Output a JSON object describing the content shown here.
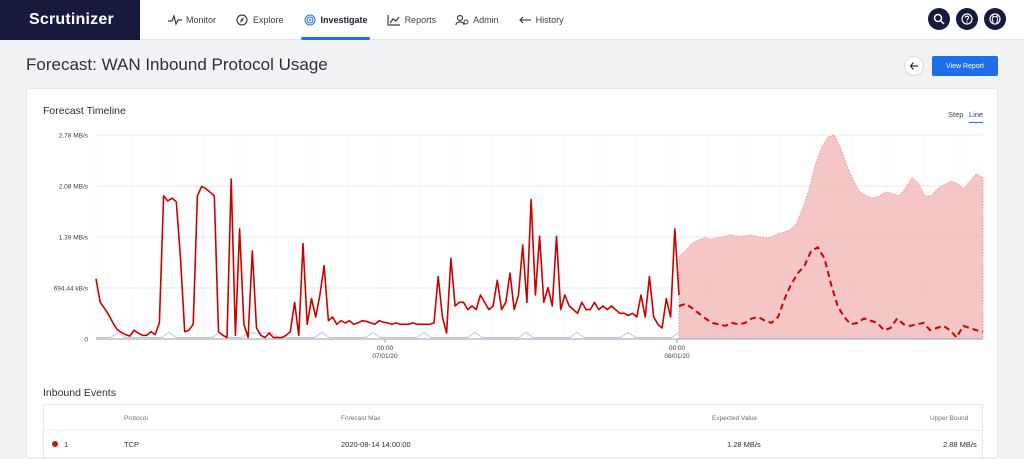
{
  "app": {
    "name": "Scrutinizer"
  },
  "nav": {
    "items": [
      {
        "label": "Monitor",
        "icon": "pulse-icon"
      },
      {
        "label": "Explore",
        "icon": "compass-icon"
      },
      {
        "label": "Investigate",
        "icon": "fingerprint-icon",
        "active": true
      },
      {
        "label": "Reports",
        "icon": "chart-icon"
      },
      {
        "label": "Admin",
        "icon": "admin-icon"
      },
      {
        "label": "History",
        "icon": "history-icon"
      }
    ]
  },
  "header": {
    "title": "Forecast: WAN Inbound Protocol Usage",
    "view_report_label": "View Report"
  },
  "timeline": {
    "title": "Forecast Timeline",
    "toggle_step": "Step",
    "toggle_line": "Line"
  },
  "colors": {
    "accent": "#1f6feb",
    "brand_dark": "#171a3d",
    "series_red": "#cc0000",
    "forecast_band": "#f2b8b8"
  },
  "chart_data": {
    "type": "line",
    "y_ticks": [
      "0",
      "694.44 kB/s",
      "1.39 MB/s",
      "2.08 MB/s",
      "2.78 MB/s"
    ],
    "ylim": [
      0,
      2.78
    ],
    "y_unit": "MB/s",
    "x_ticks": [
      {
        "time": "00:00",
        "date": "07/01/20"
      },
      {
        "time": "00:00",
        "date": "08/01/20"
      }
    ],
    "series": [
      {
        "kind": "actual",
        "color": "#cc0000",
        "values": [
          0.82,
          0.5,
          0.42,
          0.33,
          0.22,
          0.13,
          0.09,
          0.06,
          0.04,
          0.12,
          0.08,
          0.05,
          0.05,
          0.1,
          0.06,
          0.22,
          1.95,
          1.88,
          1.92,
          1.87,
          1.1,
          0.1,
          0.12,
          0.2,
          1.95,
          2.08,
          2.05,
          2.0,
          1.95,
          0.1,
          0.05,
          0.02,
          2.18,
          0.05,
          1.5,
          0.2,
          0.02,
          1.2,
          0.15,
          0.05,
          0.02,
          0.08,
          0.02,
          0.02,
          0.02,
          0.05,
          0.1,
          0.5,
          0.05,
          1.3,
          0.2,
          0.55,
          0.3,
          0.6,
          1.0,
          0.25,
          0.3,
          0.2,
          0.25,
          0.22,
          0.25,
          0.2,
          0.22,
          0.25,
          0.24,
          0.22,
          0.2,
          0.25,
          0.23,
          0.22,
          0.2,
          0.22,
          0.2,
          0.2,
          0.2,
          0.22,
          0.2,
          0.2,
          0.2,
          0.2,
          0.22,
          0.85,
          0.3,
          0.08,
          1.1,
          0.45,
          0.5,
          0.5,
          0.4,
          0.45,
          0.4,
          0.6,
          0.5,
          0.4,
          0.45,
          0.8,
          0.4,
          0.5,
          0.9,
          0.4,
          0.6,
          1.28,
          0.5,
          1.9,
          0.6,
          1.4,
          0.5,
          0.7,
          0.45,
          1.4,
          0.4,
          0.6,
          0.45,
          0.4,
          0.35,
          0.5,
          0.4,
          0.4,
          0.5,
          0.4,
          0.45,
          0.4,
          0.45,
          0.4,
          0.35,
          0.35,
          0.32,
          0.35,
          0.3,
          0.6,
          0.3,
          0.85,
          0.3,
          0.2,
          0.15,
          0.55,
          0.3,
          1.5,
          0.6
        ]
      },
      {
        "kind": "expected",
        "color": "#cc0000",
        "values": [
          0.45,
          0.48,
          0.42,
          0.35,
          0.28,
          0.22,
          0.2,
          0.18,
          0.22,
          0.2,
          0.22,
          0.28,
          0.3,
          0.25,
          0.22,
          0.3,
          0.55,
          0.75,
          0.9,
          1.0,
          1.2,
          1.25,
          1.1,
          0.75,
          0.45,
          0.3,
          0.2,
          0.22,
          0.28,
          0.25,
          0.22,
          0.12,
          0.15,
          0.28,
          0.2,
          0.18,
          0.2,
          0.22,
          0.12,
          0.15,
          0.18,
          0.12,
          0.02,
          0.18,
          0.15,
          0.12,
          0.1
        ]
      },
      {
        "kind": "upper_bound",
        "color": "#f2b8b8",
        "values": [
          1.12,
          1.2,
          1.3,
          1.35,
          1.38,
          1.36,
          1.38,
          1.4,
          1.42,
          1.4,
          1.4,
          1.42,
          1.4,
          1.38,
          1.38,
          1.42,
          1.45,
          1.48,
          1.55,
          1.75,
          2.0,
          2.35,
          2.6,
          2.75,
          2.78,
          2.6,
          2.35,
          2.15,
          2.0,
          1.95,
          1.92,
          1.95,
          2.0,
          1.98,
          1.95,
          2.05,
          2.2,
          2.12,
          1.95,
          1.95,
          2.05,
          2.1,
          2.15,
          2.12,
          2.05,
          2.15,
          2.25,
          2.2
        ]
      }
    ]
  },
  "events": {
    "title": "Inbound Events",
    "columns": [
      "Protocol",
      "Forecast Max",
      "Expected Value",
      "Upper Bound"
    ],
    "rows": [
      {
        "index": "1",
        "protocol": "TCP",
        "forecast_max": "2020-08-14 14:00:00",
        "expected": "1.28 MB/s",
        "upper": "2.88 MB/s"
      }
    ]
  }
}
